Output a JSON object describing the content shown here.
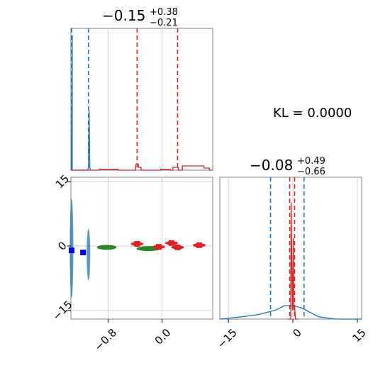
{
  "chart_data": [
    {
      "type": "histogram",
      "panel": "top-left",
      "title": {
        "median": "−0.15",
        "plus": "+0.38",
        "minus": "−0.21"
      },
      "xlim": [
        -1.35,
        0.75
      ],
      "series": [
        {
          "name": "",
          "color": "#1f77b4",
          "x": [
            -1.34,
            -1.33,
            -1.33,
            -1.1,
            -1.09,
            -1.08,
            -1.07,
            -1.06
          ],
          "y": [
            0.0,
            0.95,
            0.0,
            0.0,
            0.02,
            0.42,
            0.02,
            0.0
          ],
          "quantiles": [
            -1.34,
            -1.09
          ]
        },
        {
          "name": "",
          "color": "#d62728",
          "x": [
            -1.35,
            -0.93,
            -0.93,
            -0.65,
            -0.65,
            -0.39,
            -0.39,
            -0.35,
            -0.35,
            -0.31,
            -0.31,
            -0.02,
            -0.02,
            0.12,
            0.12,
            0.16,
            0.16,
            0.24,
            0.24,
            0.3,
            0.3,
            0.62,
            0.62,
            0.7,
            0.7,
            0.75
          ],
          "y": [
            0.0,
            0.0,
            0.006,
            0.006,
            0.0,
            0.0,
            0.04,
            0.04,
            0.02,
            0.02,
            0.0,
            0.0,
            0.006,
            0.006,
            0.0,
            0.0,
            0.02,
            0.02,
            0.0,
            0.0,
            0.03,
            0.03,
            0.015,
            0.015,
            0.0,
            0.0
          ],
          "quantiles": [
            -0.37,
            0.23
          ]
        }
      ]
    },
    {
      "type": "scatter",
      "panel": "bottom-left",
      "xlim": [
        -1.35,
        0.75
      ],
      "ylim": [
        -17,
        16
      ],
      "xticks": [
        "−0.8",
        "0.0"
      ],
      "xtick_values": [
        -0.8,
        0.0
      ],
      "yticks": [
        "15",
        "0",
        "−15"
      ],
      "ytick_values": [
        15,
        0,
        -15
      ],
      "blue_samples": [
        {
          "x": -1.34,
          "y_range": [
            -12,
            11
          ]
        },
        {
          "x": -1.09,
          "y_range": [
            -8,
            4
          ]
        }
      ],
      "blue_points": [
        {
          "x": -1.34,
          "y": -1
        },
        {
          "x": -1.17,
          "y": -1.5
        }
      ],
      "green_points": [
        {
          "x": -0.82,
          "y": -0.3,
          "x_spread": 0.28
        },
        {
          "x": -0.2,
          "y": -0.6,
          "x_spread": 0.35
        }
      ],
      "red_points": [
        {
          "x": -0.37,
          "y": 0.5
        },
        {
          "x": -0.05,
          "y": -0.2
        },
        {
          "x": 0.14,
          "y": 0.7
        },
        {
          "x": 0.23,
          "y": -0.3
        },
        {
          "x": 0.55,
          "y": 0.2
        }
      ]
    },
    {
      "type": "histogram",
      "panel": "bottom-right",
      "title": {
        "median": "−0.08",
        "plus": "+0.49",
        "minus": "−0.66"
      },
      "xlim": [
        -17,
        16
      ],
      "xticks": [
        "−15",
        "0",
        "15"
      ],
      "xtick_values": [
        -15,
        0,
        15
      ],
      "series": [
        {
          "name": "",
          "color": "#1f77b4",
          "x": [
            -17,
            -12,
            -8,
            -4,
            -2,
            0,
            2,
            4,
            6,
            10,
            16
          ],
          "y": [
            0.0,
            0.005,
            0.01,
            0.02,
            0.03,
            0.03,
            0.025,
            0.015,
            0.005,
            0.0,
            0.0
          ],
          "quantiles": [
            -5.2,
            2.6
          ]
        },
        {
          "name": "",
          "color": "#d62728",
          "x": [
            -1.2,
            -0.5,
            -0.4,
            -0.2,
            -0.1,
            0.1,
            0.2,
            0.4,
            0.6,
            1.2
          ],
          "y": [
            0.0,
            0.0,
            0.26,
            0.08,
            0.02,
            0.18,
            0.02,
            0.03,
            0.0,
            0.0
          ],
          "quantiles": [
            -0.74,
            0.41
          ]
        }
      ]
    }
  ],
  "kl_text": "KL = 0.0000"
}
